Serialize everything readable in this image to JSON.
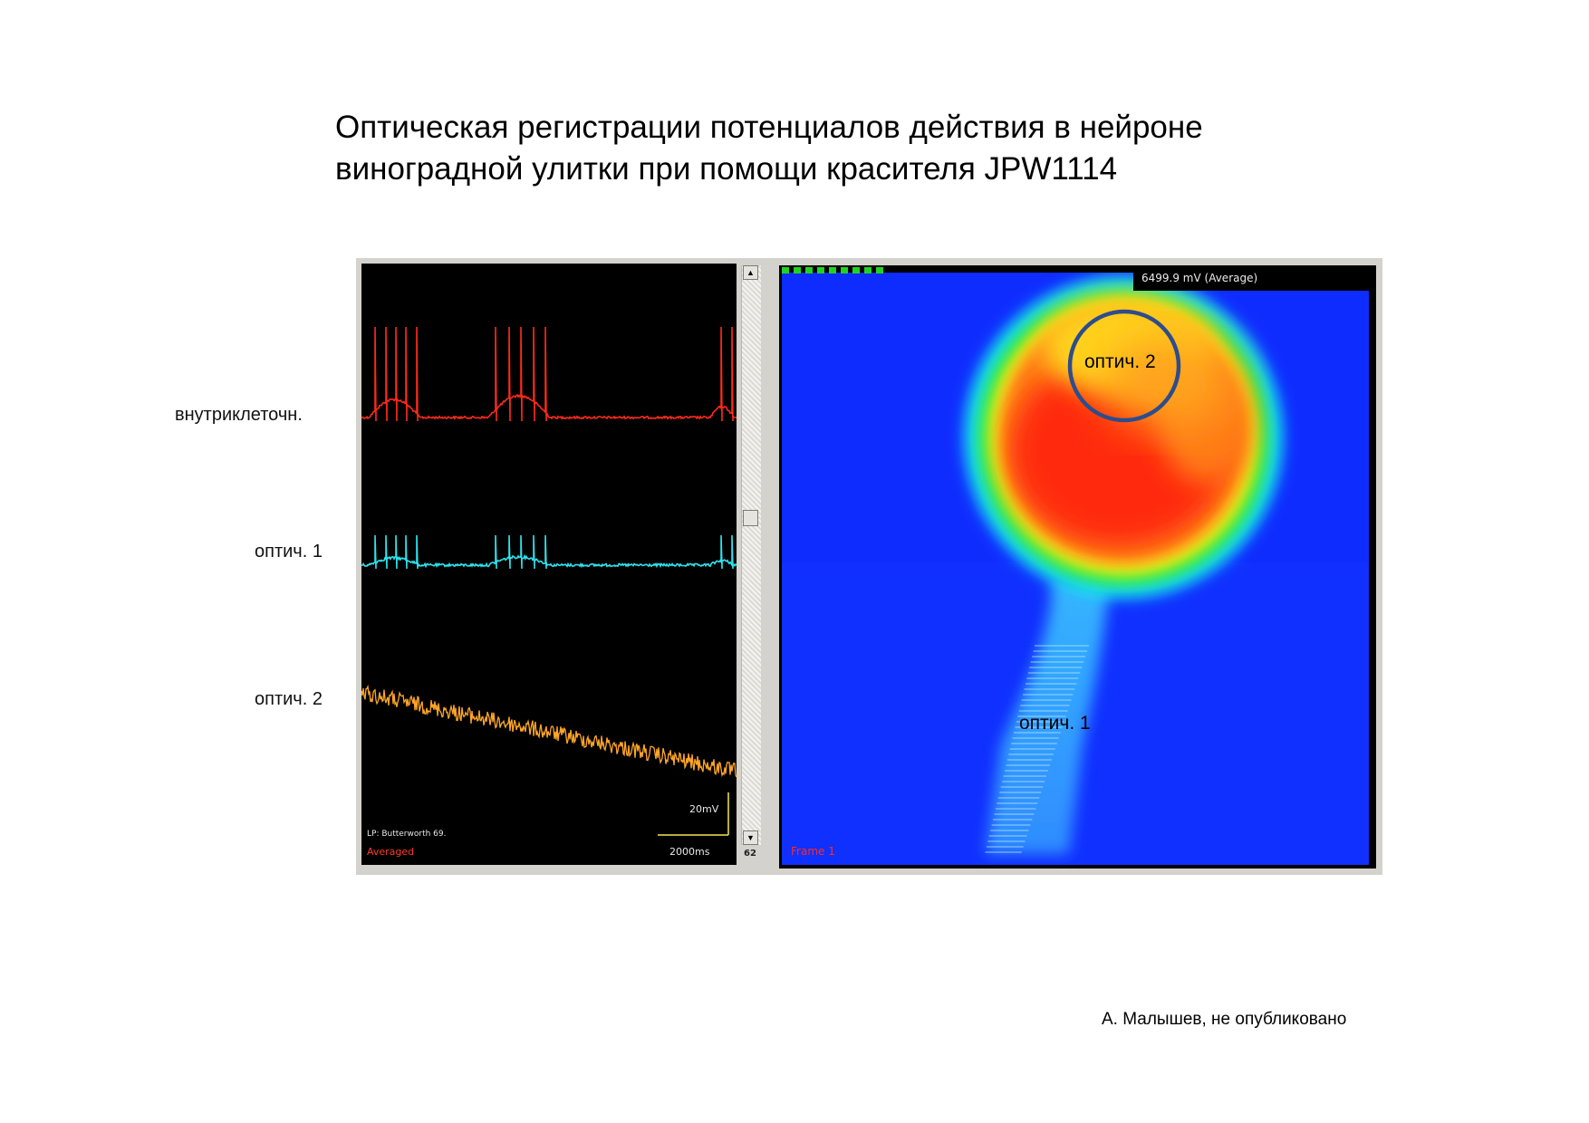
{
  "title_line1": "Оптическая регистрации потенциалов действия в нейроне",
  "title_line2": "виноградной улитки при помощи красителя JPW1114",
  "row_labels": {
    "intracellular": "внутриклеточн.",
    "optical1": "оптич. 1",
    "optical2": "оптич. 2"
  },
  "trace_panel": {
    "scale_voltage": "20mV",
    "scale_time": "2000ms",
    "filter_label": "LP: Butterworth 69.",
    "mode_label": "Averaged",
    "scrollbar_value": "62"
  },
  "map_panel": {
    "readout": "6499.9 mV (Average)",
    "roi2_label": "оптич. 2",
    "roi1_label": "оптич. 1",
    "frame_label": "Frame 1"
  },
  "credit": "А. Малышев, не опубликовано",
  "colors": {
    "trace_intracellular": "#ff2a1a",
    "trace_optical1": "#2ee3ee",
    "trace_optical2": "#ffa626",
    "map_background": "#1030ff",
    "roi_circle": "#2d4d8c",
    "progress_green": "#21d321"
  }
}
